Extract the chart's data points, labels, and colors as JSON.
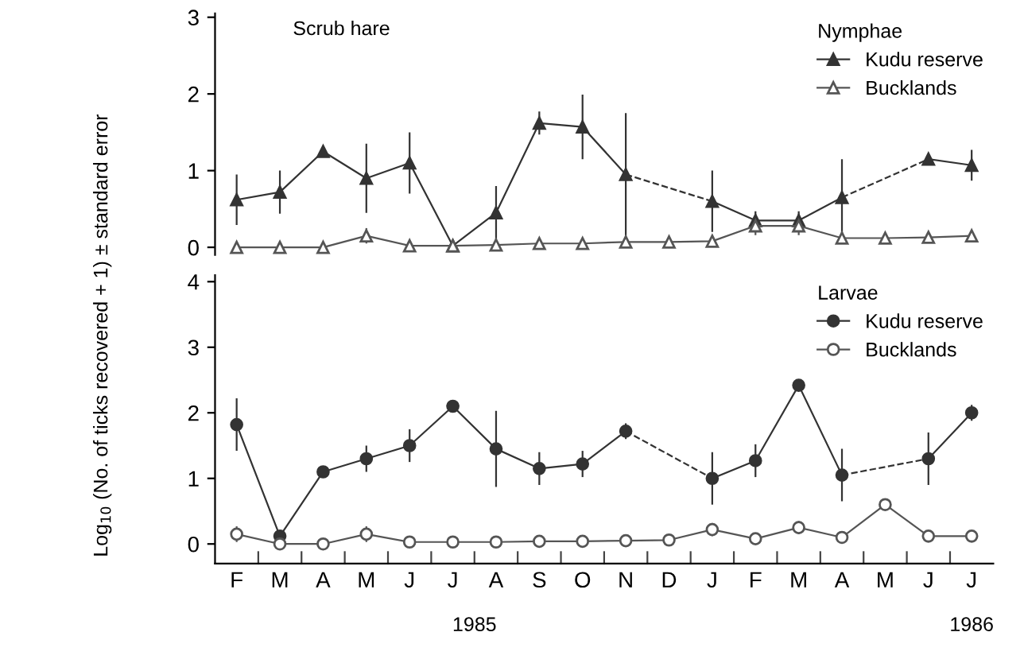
{
  "chart_data": [
    {
      "type": "line",
      "title": "Scrub hare",
      "legend_title": "Nymphae",
      "categories": [
        null,
        null,
        null,
        null,
        null,
        null,
        null,
        null,
        null,
        null,
        null,
        null,
        null,
        null,
        null,
        null,
        null,
        null
      ],
      "tick_labels": "y",
      "ylim": [
        -0.1,
        3.05
      ],
      "yticks": [
        0,
        1,
        2,
        3
      ],
      "grid": false,
      "legend": "top right",
      "series": [
        {
          "name": "Kudu reserve",
          "color": "#333333",
          "marker": "triangle",
          "values": [
            0.62,
            0.72,
            1.25,
            0.9,
            1.1,
            0.02,
            0.45,
            1.62,
            1.57,
            0.95,
            null,
            0.6,
            0.35,
            0.35,
            0.65,
            null,
            1.15,
            1.07
          ],
          "errors": [
            0.33,
            0.28,
            null,
            0.45,
            0.4,
            null,
            0.35,
            0.15,
            0.42,
            0.8,
            null,
            0.4,
            0.12,
            0.12,
            0.5,
            null,
            null,
            0.2
          ]
        },
        {
          "name": "Bucklands",
          "color": "#555555",
          "marker": "triangle",
          "values": [
            0,
            0,
            0,
            0.15,
            0.02,
            0.02,
            0.03,
            0.05,
            0.05,
            0.07,
            0.07,
            0.08,
            0.28,
            0.28,
            0.12,
            0.12,
            0.13,
            0.15
          ],
          "errors": [
            null,
            null,
            null,
            0.1,
            null,
            null,
            null,
            null,
            null,
            null,
            null,
            null,
            0.12,
            0.12,
            null,
            null,
            null,
            null
          ]
        }
      ]
    },
    {
      "type": "line",
      "legend_title": "Larvae",
      "ylabel": "Log$_{10}$ (No. of ticks recovered + 1) ± standard error",
      "categories": [
        "F",
        "M",
        "A",
        "M",
        "J",
        "J",
        "A",
        "S",
        "O",
        "N",
        "D",
        "J",
        "F",
        "M",
        "A",
        "M",
        "J",
        "J"
      ],
      "ylim": [
        -0.3,
        4.1
      ],
      "yticks": [
        0,
        1,
        2,
        3,
        4
      ],
      "grid": false,
      "legend": "top right",
      "annotations": [
        "1985",
        "1986"
      ],
      "series": [
        {
          "name": "Kudu reserve",
          "color": "#333333",
          "marker": "circle",
          "values": [
            1.82,
            0.12,
            1.1,
            1.3,
            1.5,
            2.1,
            1.45,
            1.15,
            1.22,
            1.72,
            null,
            1.0,
            1.27,
            2.42,
            1.05,
            null,
            1.3,
            2.0
          ],
          "errors": [
            0.4,
            null,
            null,
            0.2,
            0.25,
            null,
            0.58,
            0.25,
            0.2,
            0.12,
            null,
            0.4,
            0.25,
            null,
            0.4,
            null,
            0.4,
            0.12
          ]
        },
        {
          "name": "Bucklands",
          "color": "#555555",
          "marker": "circle",
          "values": [
            0.15,
            0,
            0,
            0.15,
            0.03,
            0.03,
            0.03,
            0.04,
            0.04,
            0.05,
            0.06,
            0.22,
            0.08,
            0.25,
            0.1,
            0.6,
            0.12,
            0.12
          ],
          "errors": [
            0.12,
            null,
            null,
            0.12,
            null,
            null,
            null,
            null,
            null,
            null,
            null,
            0.1,
            null,
            0.1,
            null,
            null,
            null,
            null
          ]
        }
      ]
    }
  ]
}
